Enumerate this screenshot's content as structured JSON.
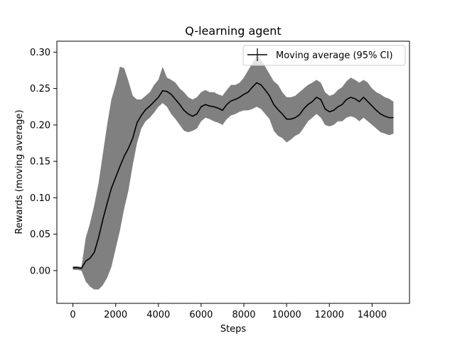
{
  "chart_data": {
    "type": "line",
    "title": "Q-learning agent",
    "xlabel": "Steps",
    "ylabel": "Rewards (moving average)",
    "xlim": [
      -750,
      15750
    ],
    "ylim": [
      -0.045,
      0.315
    ],
    "xticks": [
      0,
      2000,
      4000,
      6000,
      8000,
      10000,
      12000,
      14000
    ],
    "yticks": [
      0.0,
      0.05,
      0.1,
      0.15,
      0.2,
      0.25,
      0.3
    ],
    "xtick_labels": [
      "0",
      "2000",
      "4000",
      "6000",
      "8000",
      "10000",
      "12000",
      "14000"
    ],
    "ytick_labels": [
      "0.00",
      "0.05",
      "0.10",
      "0.15",
      "0.20",
      "0.25",
      "0.30"
    ],
    "grid": false,
    "legend": {
      "position": "top-right",
      "entries": [
        "Moving average (95% CI)"
      ]
    },
    "series": [
      {
        "name": "Moving average (95% CI)",
        "color": "#000000",
        "band_color": "#808080",
        "x": [
          0,
          200,
          400,
          600,
          800,
          1000,
          1200,
          1400,
          1600,
          1800,
          2000,
          2200,
          2400,
          2600,
          2800,
          3000,
          3200,
          3400,
          3600,
          3800,
          4000,
          4200,
          4400,
          4600,
          4800,
          5000,
          5200,
          5400,
          5600,
          5800,
          6000,
          6200,
          6400,
          6600,
          6800,
          7000,
          7200,
          7400,
          7600,
          7800,
          8000,
          8200,
          8400,
          8600,
          8800,
          9000,
          9200,
          9400,
          9600,
          9800,
          10000,
          10200,
          10400,
          10600,
          10800,
          11000,
          11200,
          11400,
          11600,
          11800,
          12000,
          12200,
          12400,
          12600,
          12800,
          13000,
          13200,
          13400,
          13600,
          13800,
          14000,
          14200,
          14400,
          14600,
          14800,
          15000
        ],
        "y": [
          0.004,
          0.004,
          0.003,
          0.013,
          0.017,
          0.025,
          0.045,
          0.07,
          0.092,
          0.113,
          0.128,
          0.143,
          0.157,
          0.168,
          0.182,
          0.203,
          0.213,
          0.221,
          0.226,
          0.232,
          0.238,
          0.247,
          0.246,
          0.242,
          0.235,
          0.228,
          0.22,
          0.215,
          0.212,
          0.215,
          0.225,
          0.228,
          0.226,
          0.225,
          0.223,
          0.22,
          0.228,
          0.233,
          0.235,
          0.238,
          0.242,
          0.245,
          0.252,
          0.258,
          0.255,
          0.248,
          0.24,
          0.228,
          0.221,
          0.215,
          0.208,
          0.208,
          0.21,
          0.214,
          0.222,
          0.228,
          0.232,
          0.238,
          0.235,
          0.222,
          0.218,
          0.22,
          0.225,
          0.228,
          0.235,
          0.238,
          0.236,
          0.232,
          0.238,
          0.232,
          0.226,
          0.22,
          0.215,
          0.212,
          0.21,
          0.21
        ],
        "lower": [
          0.001,
          0.001,
          0.0,
          -0.015,
          -0.022,
          -0.026,
          -0.026,
          -0.02,
          -0.01,
          0.005,
          0.03,
          0.055,
          0.085,
          0.11,
          0.145,
          0.175,
          0.195,
          0.205,
          0.21,
          0.217,
          0.225,
          0.23,
          0.225,
          0.215,
          0.208,
          0.2,
          0.192,
          0.19,
          0.192,
          0.195,
          0.205,
          0.21,
          0.208,
          0.205,
          0.203,
          0.2,
          0.208,
          0.213,
          0.215,
          0.218,
          0.22,
          0.22,
          0.222,
          0.225,
          0.222,
          0.215,
          0.208,
          0.192,
          0.185,
          0.182,
          0.176,
          0.18,
          0.185,
          0.188,
          0.196,
          0.205,
          0.21,
          0.215,
          0.21,
          0.2,
          0.198,
          0.2,
          0.205,
          0.205,
          0.21,
          0.212,
          0.21,
          0.205,
          0.21,
          0.205,
          0.2,
          0.195,
          0.19,
          0.188,
          0.186,
          0.188
        ],
        "upper": [
          0.006,
          0.006,
          0.005,
          0.045,
          0.065,
          0.09,
          0.12,
          0.16,
          0.2,
          0.235,
          0.255,
          0.28,
          0.278,
          0.26,
          0.24,
          0.235,
          0.235,
          0.24,
          0.245,
          0.255,
          0.262,
          0.28,
          0.265,
          0.262,
          0.258,
          0.25,
          0.245,
          0.238,
          0.235,
          0.238,
          0.245,
          0.248,
          0.245,
          0.245,
          0.242,
          0.24,
          0.248,
          0.255,
          0.255,
          0.258,
          0.265,
          0.275,
          0.285,
          0.295,
          0.29,
          0.28,
          0.27,
          0.26,
          0.255,
          0.245,
          0.238,
          0.238,
          0.24,
          0.245,
          0.25,
          0.255,
          0.258,
          0.262,
          0.258,
          0.245,
          0.24,
          0.242,
          0.248,
          0.252,
          0.26,
          0.265,
          0.262,
          0.258,
          0.262,
          0.258,
          0.25,
          0.245,
          0.242,
          0.238,
          0.236,
          0.232
        ]
      }
    ]
  }
}
